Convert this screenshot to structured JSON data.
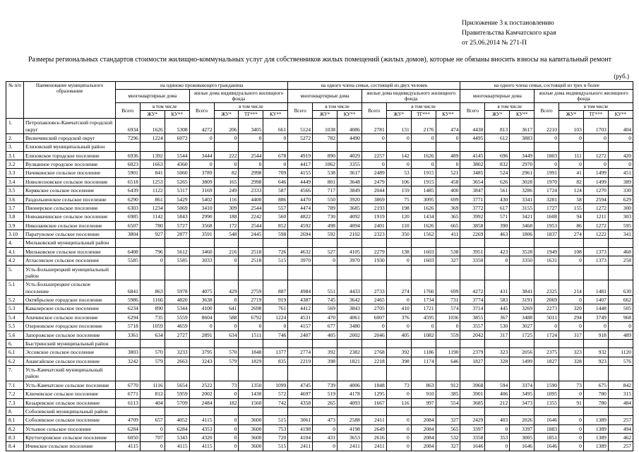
{
  "doc": {
    "annex_lines": [
      "Приложение 3 к постановлению",
      "Правительства Камчатского края",
      "от 25.06.2014 № 271-П"
    ],
    "title": "Размеры региональных стандартов стоимости жилищно-коммунальных услуг для собственников жилых помещений (жилых домов), которые не обязаны вносить взносы на капитальный ремонт",
    "currency_note": "(руб.)"
  },
  "table": {
    "headers": {
      "num": "№ п/п",
      "name": "Наименование муниципального образования",
      "groups": [
        "на одиноко проживающего гражданина",
        "на одного члена семьи, состоящей из двух человек",
        "на одного члена семьи, состоящей из трех и более"
      ],
      "mkd": "многоквартирные дома",
      "izf": "жилые дома индивидуального жилищного фонда",
      "total": "Всего",
      "including": "в том числе",
      "zhu": "ЖУ*",
      "tg": "ТГ***",
      "ku": "КУ**"
    },
    "rows": [
      {
        "num": "1.",
        "name": "Петропавловск-Камчатский городской округ",
        "values": [
          6934,
          1626,
          5308,
          4272,
          206,
          3405,
          661,
          5124,
          1038,
          4086,
          2781,
          131,
          2176,
          474,
          4430,
          813,
          3617,
          2210,
          103,
          1703,
          404
        ]
      },
      {
        "num": "2.",
        "name": "Вилючинский городской округ",
        "values": [
          7296,
          1224,
          6072,
          0,
          0,
          0,
          0,
          5272,
          782,
          4490,
          0,
          0,
          0,
          0,
          4495,
          612,
          3883,
          0,
          0,
          0,
          0
        ]
      },
      {
        "num": "3.",
        "name": "Елизовский муниципальный район",
        "values": []
      },
      {
        "num": "3.1",
        "name": "Елизовское городское поселение",
        "values": [
          6936,
          1392,
          5544,
          3444,
          222,
          2544,
          678,
          4919,
          890,
          4029,
          2257,
          142,
          1626,
          489,
          4145,
          696,
          3449,
          1803,
          111,
          1272,
          420
        ]
      },
      {
        "num": "3.2",
        "name": "Вулканное городское поселение",
        "values": [
          6023,
          1663,
          4360,
          0,
          0,
          0,
          0,
          4417,
          1062,
          3355,
          0,
          0,
          0,
          0,
          3802,
          832,
          2970,
          0,
          0,
          0,
          0
        ]
      },
      {
        "num": "3.3",
        "name": "Начикинское сельское поселение",
        "values": [
          5901,
          841,
          5060,
          3789,
          82,
          2998,
          709,
          4155,
          538,
          3617,
          2489,
          53,
          1915,
          521,
          3485,
          524,
          2961,
          1991,
          41,
          1499,
          451
        ]
      },
      {
        "num": "3.4",
        "name": "Новолесновское сельское поселение",
        "values": [
          6518,
          1253,
          5265,
          3809,
          165,
          2998,
          646,
          4449,
          801,
          3648,
          2479,
          106,
          1915,
          458,
          3654,
          626,
          3028,
          1970,
          82,
          1499,
          389
        ]
      },
      {
        "num": "3.5",
        "name": "Корякское сельское поселение",
        "values": [
          6439,
          1122,
          5317,
          3169,
          249,
          2333,
          587,
          4566,
          717,
          3849,
          2044,
          159,
          1485,
          400,
          3847,
          561,
          3286,
          1724,
          124,
          1270,
          330
        ]
      },
      {
        "num": "3.6",
        "name": "Раздольненское сельское поселение",
        "values": [
          6290,
          861,
          5429,
          5402,
          116,
          4400,
          886,
          4470,
          550,
          3920,
          3869,
          75,
          3095,
          699,
          3771,
          430,
          3341,
          3281,
          58,
          2594,
          629
        ]
      },
      {
        "num": "3.7",
        "name": "Пионерское сельское поселение",
        "values": [
          6303,
          1234,
          5069,
          3410,
          309,
          2544,
          557,
          4474,
          789,
          3685,
          2193,
          198,
          1626,
          369,
          3772,
          617,
          3155,
          1727,
          155,
          1272,
          300
        ]
      },
      {
        "num": "3.8",
        "name": "Новоавачинское сельское поселение",
        "values": [
          6985,
          1142,
          5843,
          2990,
          188,
          2242,
          560,
          4822,
          730,
          4092,
          1919,
          120,
          1434,
          365,
          3992,
          571,
          3421,
          1608,
          94,
          1211,
          303
        ]
      },
      {
        "num": "3.9",
        "name": "Николаевское сельское поселение",
        "values": [
          6507,
          780,
          5727,
          3568,
          172,
          2544,
          852,
          4592,
          498,
          4094,
          2401,
          110,
          1626,
          665,
          3858,
          390,
          3468,
          1953,
          86,
          1272,
          595
        ]
      },
      {
        "num": "3.10",
        "name": "Паратунское сельское поселение",
        "values": [
          3804,
          927,
          2877,
          3591,
          548,
          2445,
          598,
          2694,
          592,
          2102,
          2323,
          350,
          1562,
          411,
          2269,
          463,
          1806,
          1837,
          274,
          1222,
          341
        ]
      },
      {
        "num": "4.",
        "name": "Мильковский муниципальный район",
        "values": []
      },
      {
        "num": "4.1",
        "name": "Мильковское сельское поселение",
        "values": [
          6408,
          796,
          5612,
          3460,
          216,
          2518,
          726,
          4632,
          527,
          4105,
          2279,
          138,
          1603,
          538,
          3951,
          423,
          3528,
          1949,
          108,
          1373,
          468
        ]
      },
      {
        "num": "4.2",
        "name": "Атласовское сельское поселение",
        "values": [
          5585,
          0,
          5585,
          3033,
          0,
          2518,
          515,
          3970,
          0,
          3970,
          1930,
          0,
          1603,
          327,
          3350,
          0,
          3350,
          1631,
          0,
          1373,
          258
        ]
      },
      {
        "num": "5.",
        "name": "Усть-Большерецкий муниципальный район",
        "values": []
      },
      {
        "num": "5.1",
        "name": "Усть-Большерецкое сельское поселение",
        "values": [
          6841,
          863,
          5978,
          4075,
          429,
          2759,
          887,
          4984,
          551,
          4433,
          2733,
          274,
          1760,
          699,
          4272,
          431,
          3841,
          2325,
          214,
          1481,
          630
        ]
      },
      {
        "num": "5.2",
        "name": "Октябрьское городское поселение",
        "values": [
          5986,
          1166,
          4820,
          3638,
          0,
          2719,
          919,
          4387,
          745,
          3642,
          2465,
          0,
          1734,
          731,
          3774,
          583,
          3191,
          2069,
          0,
          1407,
          662
        ]
      },
      {
        "num": "5.3",
        "name": "Кавалерское сельское поселение",
        "values": [
          6234,
          890,
          5344,
          4100,
          641,
          2698,
          761,
          4412,
          569,
          3843,
          2705,
          410,
          1721,
          574,
          3714,
          445,
          3269,
          2273,
          320,
          1448,
          505
        ]
      },
      {
        "num": "5.4",
        "name": "Апачинское сельское поселение",
        "values": [
          6294,
          735,
          5559,
          8604,
          588,
          6792,
          1224,
          4531,
          470,
          4061,
          6007,
          376,
          4595,
          1036,
          3855,
          367,
          3488,
          5011,
          294,
          3749,
          968
        ]
      },
      {
        "num": "5.5",
        "name": "Озерновское городское поселение",
        "values": [
          5718,
          1059,
          4659,
          0,
          0,
          0,
          0,
          4157,
          677,
          3480,
          0,
          0,
          0,
          0,
          3557,
          530,
          3027,
          0,
          0,
          0,
          0
        ]
      },
      {
        "num": "5.6",
        "name": "Запорожское сельское поселение",
        "values": [
          3361,
          634,
          2727,
          2891,
          634,
          1511,
          746,
          2407,
          405,
          2002,
          2046,
          405,
          1082,
          559,
          2042,
          317,
          1725,
          1724,
          317,
          918,
          489
        ]
      },
      {
        "num": "6.",
        "name": "Быстринский муниципальный район",
        "values": []
      },
      {
        "num": "6.1",
        "name": "Эссовское сельское поселение",
        "values": [
          3803,
          570,
          3233,
          3795,
          570,
          1848,
          1377,
          2774,
          392,
          2382,
          2768,
          392,
          1186,
          1190,
          2379,
          323,
          2056,
          2375,
          323,
          932,
          1120
        ]
      },
      {
        "num": "6.2",
        "name": "Анавгайское сельское поселение",
        "values": [
          3242,
          579,
          2663,
          3243,
          579,
          1829,
          835,
          2219,
          398,
          1821,
          2218,
          398,
          1174,
          646,
          1827,
          328,
          1499,
          1827,
          328,
          923,
          576
        ]
      },
      {
        "num": "7.",
        "name": "Усть-Камчатский муниципальный район",
        "values": []
      },
      {
        "num": "7.1",
        "name": "Усть-Камчатское сельское поселение",
        "values": [
          6770,
          1116,
          5654,
          2522,
          73,
          1350,
          1099,
          4745,
          739,
          4006,
          1848,
          73,
          863,
          912,
          3968,
          594,
          3374,
          1590,
          73,
          675,
          842
        ]
      },
      {
        "num": "7.2",
        "name": "Ключевское сельское поселение",
        "values": [
          6771,
          812,
          5959,
          2002,
          0,
          1430,
          572,
          4697,
          519,
          4178,
          1295,
          0,
          910,
          385,
          3901,
          406,
          3495,
          1095,
          0,
          780,
          315
        ]
      },
      {
        "num": "7.3",
        "name": "Козыревское сельское поселение",
        "values": [
          6113,
          404,
          5709,
          2484,
          182,
          1560,
          742,
          4358,
          265,
          4093,
          1667,
          116,
          997,
          554,
          3685,
          212,
          3473,
          1355,
          91,
          780,
          484
        ]
      },
      {
        "num": "8.",
        "name": "Соболевский муниципальный район",
        "values": []
      },
      {
        "num": "8.1",
        "name": "Соболевское сельское поселение",
        "values": [
          4709,
          657,
          4052,
          4115,
          0,
          3600,
          515,
          3061,
          473,
          2588,
          2411,
          0,
          2084,
          327,
          2429,
          403,
          2026,
          1646,
          0,
          1389,
          257
        ]
      },
      {
        "num": "8.2",
        "name": "Устьевое сельское поселение",
        "values": [
          6284,
          0,
          6284,
          4353,
          0,
          3600,
          753,
          4198,
          0,
          4198,
          2649,
          0,
          2084,
          565,
          3397,
          0,
          3397,
          1883,
          0,
          1389,
          494
        ]
      },
      {
        "num": "8.3",
        "name": "Крутогоровское сельское поселение",
        "values": [
          6050,
          707,
          5343,
          4320,
          0,
          3600,
          720,
          4104,
          431,
          3653,
          2616,
          0,
          2084,
          532,
          3358,
          353,
          3005,
          1851,
          0,
          1389,
          462
        ]
      },
      {
        "num": "8.4",
        "name": "Ичинское сельское поселение",
        "values": [
          4115,
          0,
          4115,
          4115,
          0,
          3600,
          515,
          2411,
          0,
          2411,
          2411,
          0,
          2084,
          327,
          1646,
          0,
          1646,
          1646,
          0,
          1389,
          257
        ]
      }
    ]
  }
}
